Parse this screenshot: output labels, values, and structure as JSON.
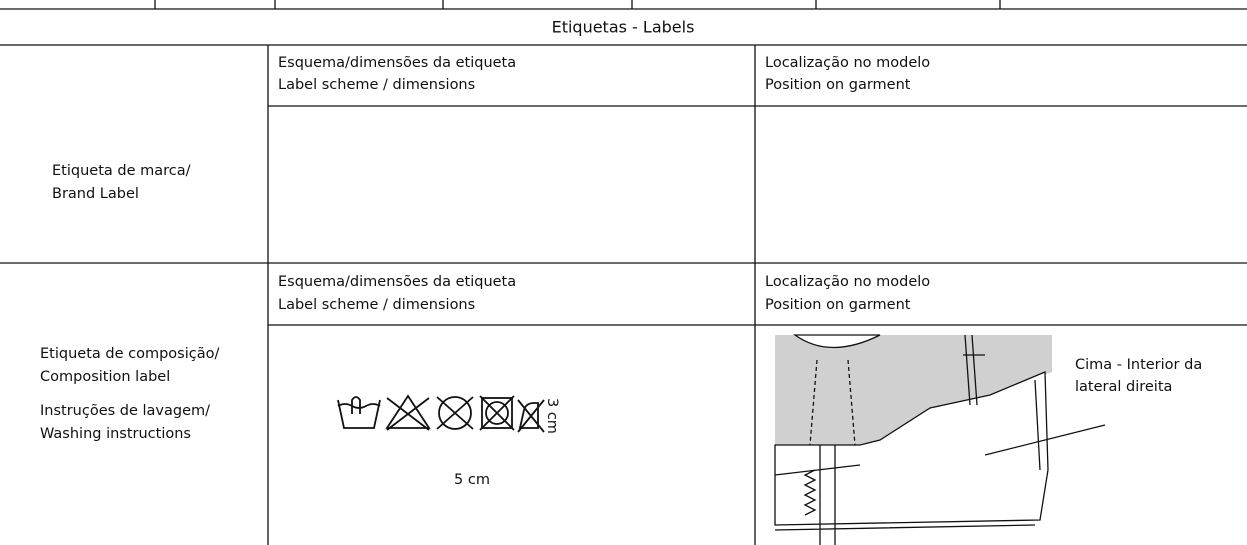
{
  "header": {
    "title": "Etiquetas - Labels"
  },
  "rows": [
    {
      "label": [
        "Etiqueta de marca/",
        "Brand Label"
      ],
      "scheme_header": [
        "Esquema/dimensões da etiqueta",
        "Label scheme / dimensions"
      ],
      "position_header": [
        "Localização no modelo",
        "Position on garment"
      ]
    },
    {
      "label": [
        "Etiqueta de composição/",
        "Composition label",
        "Instruções de lavagem/",
        "Washing instructions"
      ],
      "scheme_header": [
        "Esquema/dimensões da etiqueta",
        "Label scheme / dimensions"
      ],
      "position_header": [
        "Localização no modelo",
        "Position on garment"
      ],
      "label_height": "3 cm",
      "label_width": "5 cm",
      "position_note": [
        "Cima - Interior da",
        "lateral direita"
      ]
    }
  ]
}
